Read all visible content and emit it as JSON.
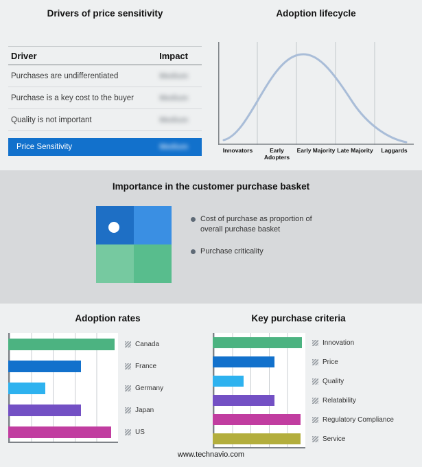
{
  "colors": {
    "page_bg": "#eef0f1",
    "band_bg": "#d7d9db",
    "accent": "#1271cc",
    "curve": "#a9bdd8",
    "axis": "#7d8287",
    "gridline": "#c9cdd1",
    "blur_text": "#8d9297"
  },
  "drivers_panel": {
    "title": "Drivers of price sensitivity",
    "columns": {
      "driver": "Driver",
      "impact": "Impact"
    },
    "rows": [
      {
        "driver": "Purchases are undifferentiated",
        "impact": "Medium",
        "impact_blurred": true
      },
      {
        "driver": "Purchase is a key cost to the buyer",
        "impact": "Medium",
        "impact_blurred": true
      },
      {
        "driver": "Quality is not important",
        "impact": "Medium",
        "impact_blurred": true
      }
    ],
    "highlight": {
      "driver": "Price Sensitivity",
      "impact": "Medium",
      "impact_blurred": true
    }
  },
  "lifecycle_panel": {
    "title": "Adoption lifecycle",
    "stages": [
      "Innovators",
      "Early Adopters",
      "Early Majority",
      "Late Majority",
      "Laggards"
    ]
  },
  "basket_panel": {
    "title": "Importance in the customer purchase basket",
    "bullets": [
      "Cost of purchase as proportion of overall purchase basket",
      "Purchase criticality"
    ],
    "quadrant_colors": [
      "#1e6fc5",
      "#3a8fe3",
      "#76c9a0",
      "#58bd8d"
    ]
  },
  "chart_data": [
    {
      "type": "bar",
      "orientation": "horizontal",
      "title": "Adoption rates",
      "categories": [
        "Canada",
        "France",
        "Germany",
        "Japan",
        "US"
      ],
      "values": [
        97,
        66,
        34,
        66,
        94
      ],
      "value_note": "relative bar length as % of axis; axis has no numeric tick labels",
      "colors": [
        "#4cb381",
        "#1271cc",
        "#2eb2ef",
        "#7350c4",
        "#c13da0"
      ],
      "grid": true,
      "legend_position": "right"
    },
    {
      "type": "bar",
      "orientation": "horizontal",
      "title": "Key purchase criteria",
      "categories": [
        "Innovation",
        "Price",
        "Quality",
        "Relatability",
        "Regulatory Compliance",
        "Service"
      ],
      "values": [
        96,
        67,
        33,
        67,
        95,
        95
      ],
      "value_note": "relative bar length as % of axis; axis has no numeric tick labels",
      "colors": [
        "#4cb381",
        "#1271cc",
        "#2eb2ef",
        "#7350c4",
        "#c13da0",
        "#b3ae3d"
      ],
      "grid": true,
      "legend_position": "right"
    }
  ],
  "footer": {
    "website": "www.technavio.com"
  }
}
